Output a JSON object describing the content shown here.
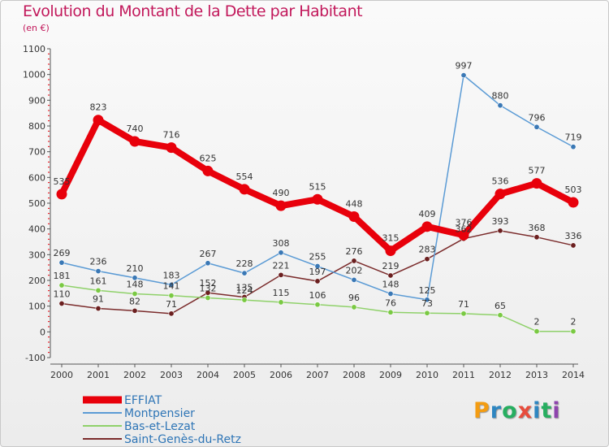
{
  "header": {
    "title": "Evolution du Montant de la Dette par Habitant",
    "unit": "(en €)"
  },
  "logo": {
    "text": "Proxiti",
    "letters": [
      {
        "ch": "P",
        "color": "#f39c12"
      },
      {
        "ch": "r",
        "color": "#2e86c1"
      },
      {
        "ch": "o",
        "color": "#27ae60"
      },
      {
        "ch": "x",
        "color": "#e74c3c"
      },
      {
        "ch": "i",
        "color": "#2e86c1"
      },
      {
        "ch": "t",
        "color": "#27ae60"
      },
      {
        "ch": "i",
        "color": "#8e44ad"
      }
    ]
  },
  "chart_data": {
    "type": "line",
    "title": "Evolution du Montant de la Dette par Habitant",
    "subtitle": "(en €)",
    "x": [
      2000,
      2001,
      2002,
      2003,
      2004,
      2005,
      2006,
      2007,
      2008,
      2009,
      2010,
      2011,
      2012,
      2013,
      2014
    ],
    "ylim": [
      -100,
      1100
    ],
    "yticks": [
      -100,
      0,
      100,
      200,
      300,
      400,
      500,
      600,
      700,
      800,
      900,
      1000,
      1100
    ],
    "grid": false,
    "legend_position": "bottom-left",
    "series": [
      {
        "name": "EFFIAT",
        "color": "#e8000b",
        "marker_color": "#e8000b",
        "values": [
          535,
          823,
          740,
          716,
          625,
          554,
          490,
          515,
          448,
          315,
          409,
          376,
          536,
          577,
          503
        ]
      },
      {
        "name": "Montpensier",
        "color": "#5b9bd5",
        "marker_color": "#3a78b5",
        "values": [
          269,
          236,
          210,
          183,
          267,
          228,
          308,
          255,
          202,
          148,
          125,
          997,
          880,
          796,
          719
        ]
      },
      {
        "name": "Bas-et-Lezat",
        "color": "#8fd16a",
        "marker_color": "#7ac943",
        "values": [
          181,
          161,
          148,
          141,
          132,
          124,
          115,
          106,
          96,
          76,
          73,
          71,
          65,
          2,
          2
        ]
      },
      {
        "name": "Saint-Genès-du-Retz",
        "color": "#7b2c2c",
        "marker_color": "#6b1f1f",
        "values": [
          110,
          91,
          82,
          71,
          152,
          135,
          221,
          197,
          276,
          219,
          283,
          362,
          393,
          368,
          336
        ]
      }
    ]
  }
}
